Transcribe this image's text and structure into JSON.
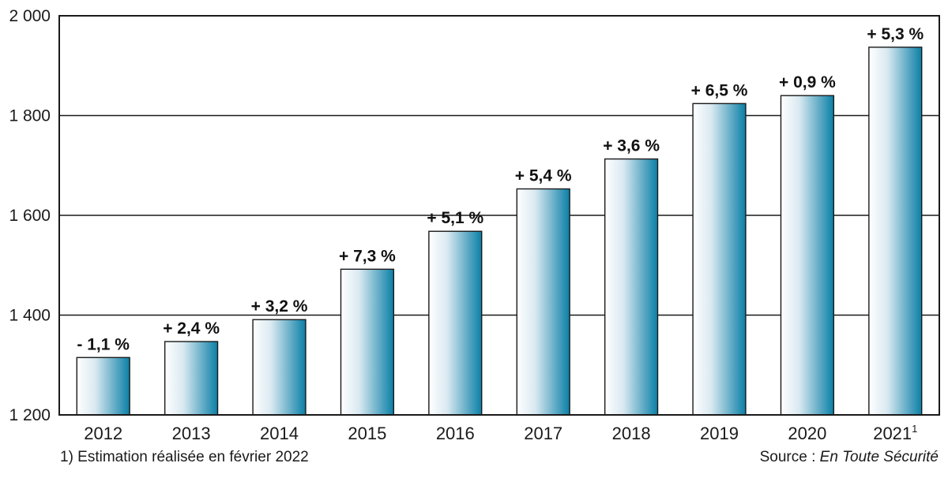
{
  "chart_data": {
    "type": "bar",
    "categories": [
      "2012",
      "2013",
      "2014",
      "2015",
      "2016",
      "2017",
      "2018",
      "2019",
      "2020",
      "2021"
    ],
    "category_superscripts": [
      "",
      "",
      "",
      "",
      "",
      "",
      "",
      "",
      "",
      "1"
    ],
    "values": [
      1315,
      1347,
      1391,
      1492,
      1568,
      1653,
      1713,
      1824,
      1840,
      1937
    ],
    "data_labels": [
      "- 1,1 %",
      "+ 2,4 %",
      "+ 3,2 %",
      "+ 7,3 %",
      "+ 5,1 %",
      "+ 5,4 %",
      "+ 3,6 %",
      "+ 6,5 %",
      "+ 0,9 %",
      "+ 5,3 %"
    ],
    "ylim": [
      1200,
      2000
    ],
    "yticks": [
      1200,
      1400,
      1600,
      1800,
      2000
    ],
    "ytick_labels": [
      "1 200",
      "1 400",
      "1 600",
      "1 800",
      "2 000"
    ],
    "grid": true,
    "title": "",
    "xlabel": "",
    "ylabel": "",
    "colors": {
      "bar_light": "#ffffff",
      "bar_dark": "#0a7fa6",
      "outline": "#1a1a1a"
    }
  },
  "footnote": "1) Estimation réalisée en février 2022",
  "source": {
    "prefix": "Source : ",
    "name": "En Toute Sécurité"
  }
}
